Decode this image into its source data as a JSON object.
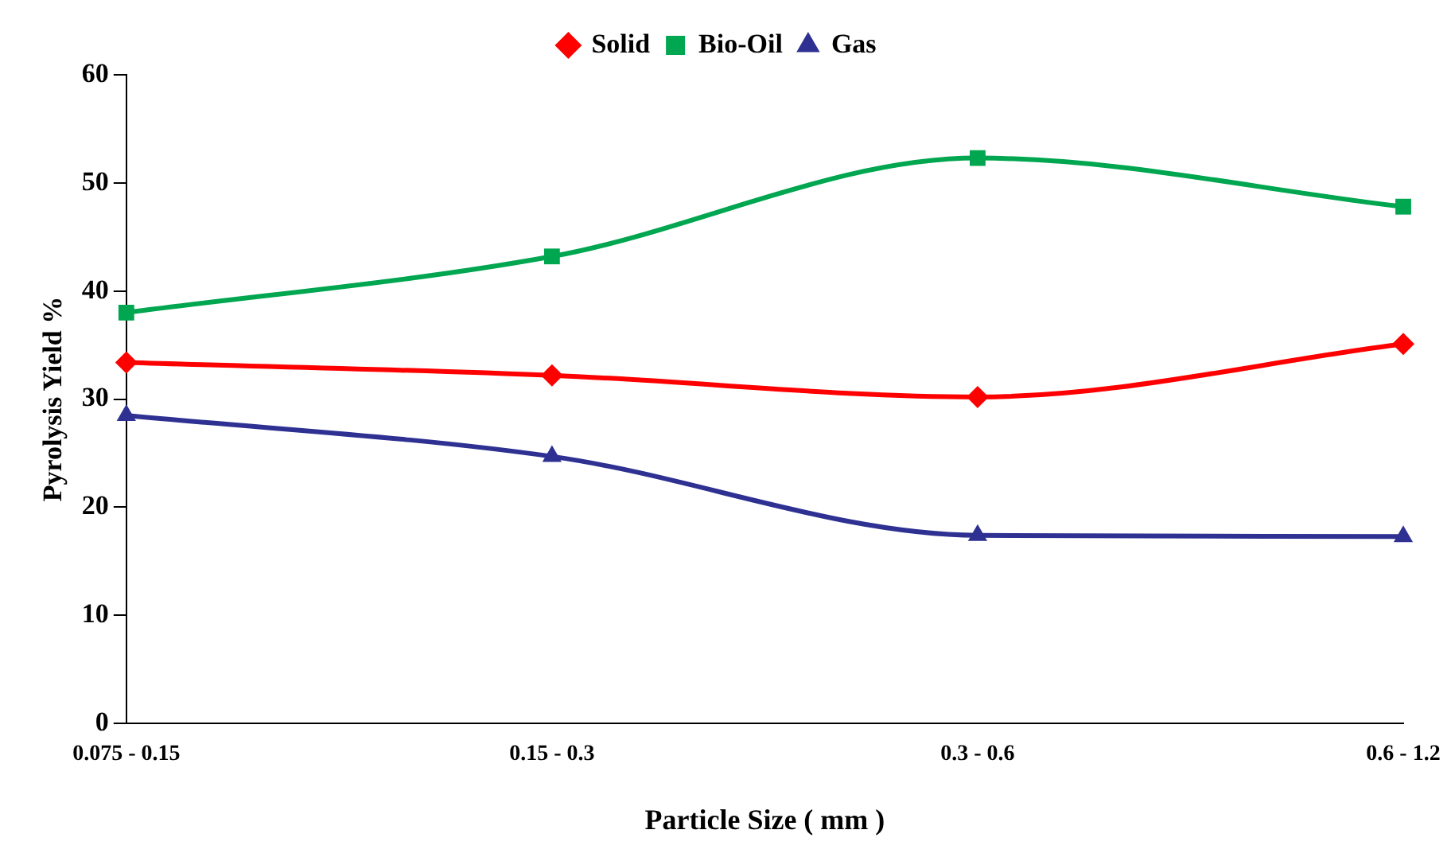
{
  "chart_data": {
    "type": "line",
    "xlabel": "Particle Size ( mm )",
    "ylabel": "Pyrolysis Yield %",
    "categories": [
      "0.075 - 0.15",
      "0.15 - 0.3",
      "0.3 - 0.6",
      "0.6 - 1.2"
    ],
    "series": [
      {
        "name": "Solid",
        "color": "#ff0000",
        "marker": "diamond",
        "values": [
          33.4,
          32.2,
          30.2,
          35.1
        ]
      },
      {
        "name": "Bio-Oil",
        "color": "#00a650",
        "marker": "square",
        "values": [
          38.0,
          43.2,
          52.3,
          47.8
        ]
      },
      {
        "name": "Gas",
        "color": "#2e3192",
        "marker": "triangle",
        "values": [
          28.5,
          24.7,
          17.4,
          17.3
        ]
      }
    ],
    "ylim": [
      0,
      60
    ],
    "yticks": [
      0,
      10,
      20,
      30,
      40,
      50,
      60
    ],
    "grid": false,
    "legend": "top",
    "line_style": "solid"
  }
}
